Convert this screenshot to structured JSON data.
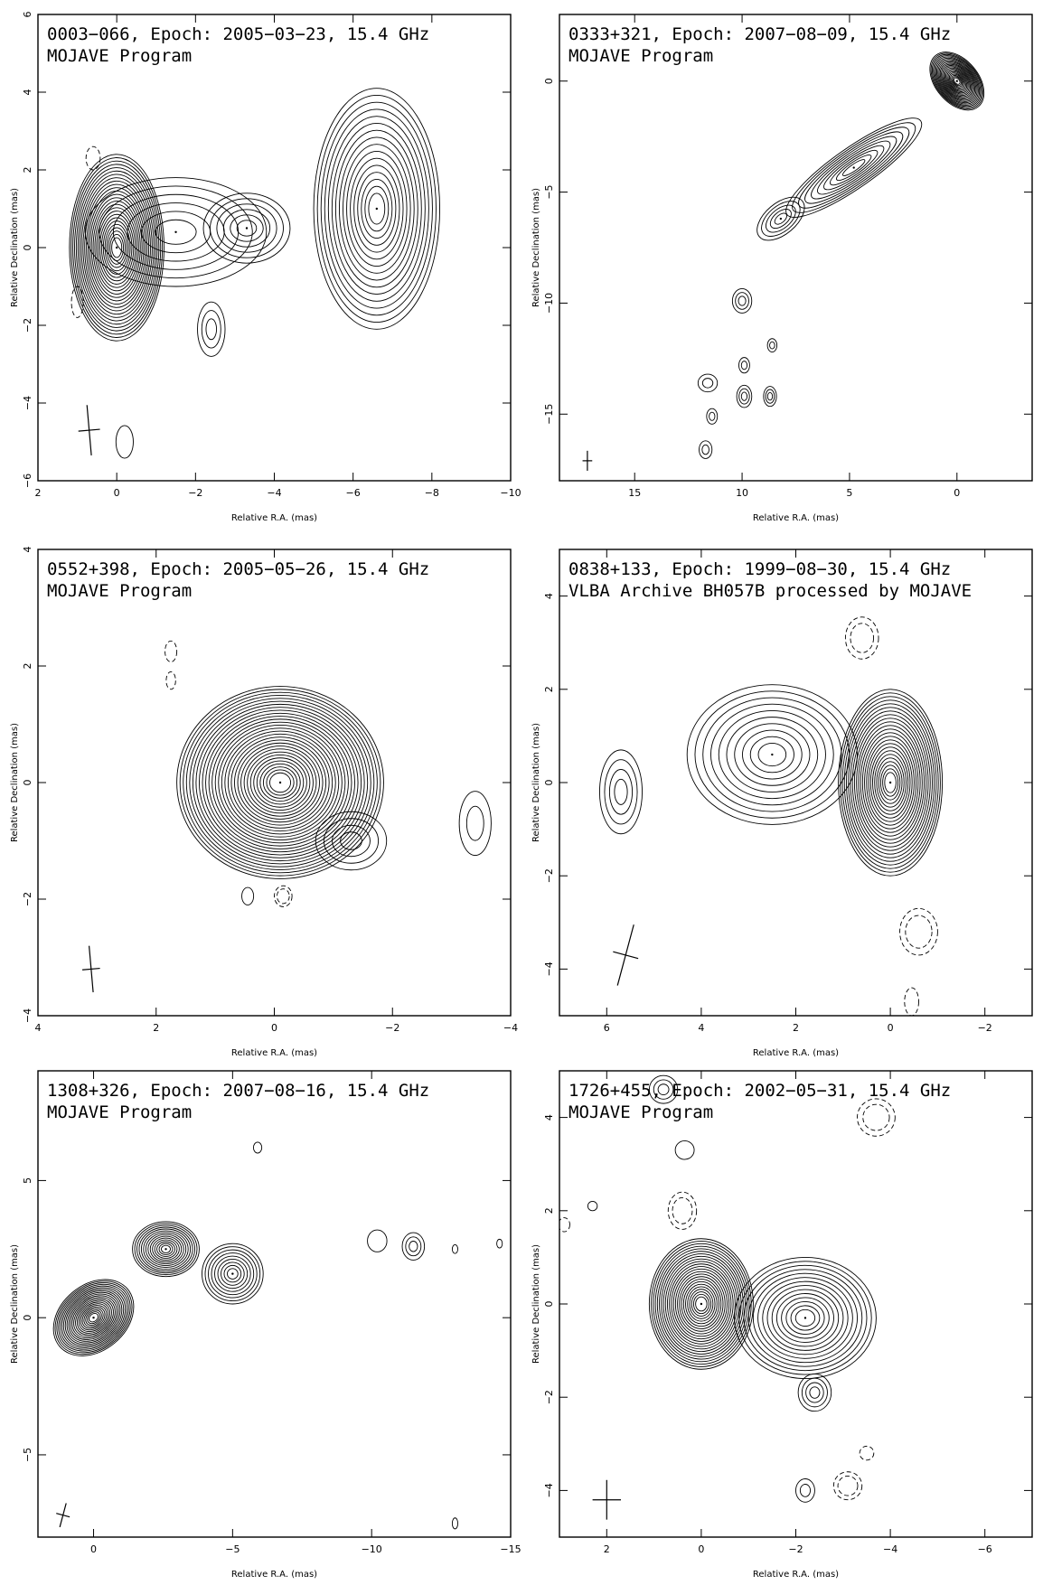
{
  "chart_data": [
    {
      "type": "contour",
      "title": "0003−066, Epoch: 2005−03−23, 15.4 GHz",
      "subtitle": "MOJAVE Program",
      "xlabel": "Relative R.A. (mas)",
      "ylabel": "Relative Declination (mas)",
      "xlim": [
        2,
        -10
      ],
      "ylim": [
        -6,
        6
      ],
      "xticks": [
        "2",
        "0",
        "−2",
        "−4",
        "−6",
        "−8",
        "−10"
      ],
      "xtick_values": [
        2,
        0,
        -2,
        -4,
        -6,
        -8,
        -10
      ],
      "yticks": [
        "−6",
        "−4",
        "−2",
        "0",
        "2",
        "4",
        "6"
      ],
      "ytick_values": [
        -6,
        -4,
        -2,
        0,
        2,
        4,
        6
      ],
      "beam": {
        "x": 0.7,
        "y": -4.7,
        "major": 1.3,
        "minor": 0.55,
        "pa": -5
      },
      "components": [
        {
          "x": 0.0,
          "y": 0.0,
          "rx": 1.2,
          "ry": 2.4,
          "levels": 26,
          "rot": 0
        },
        {
          "x": -1.5,
          "y": 0.4,
          "rx": 2.3,
          "ry": 1.4,
          "levels": 6,
          "rot": 0
        },
        {
          "x": -3.3,
          "y": 0.5,
          "rx": 1.1,
          "ry": 0.9,
          "levels": 6,
          "rot": 0
        },
        {
          "x": -6.6,
          "y": 1.0,
          "rx": 1.6,
          "ry": 3.1,
          "levels": 16,
          "rot": 0
        },
        {
          "x": -2.4,
          "y": -2.1,
          "rx": 0.35,
          "ry": 0.7,
          "levels": 3,
          "rot": 0
        },
        {
          "x": -0.2,
          "y": -5.0,
          "rx": 0.22,
          "ry": 0.42,
          "levels": 1,
          "rot": 0
        }
      ],
      "negative": [
        {
          "x": 0.6,
          "y": 2.3,
          "rx": 0.18,
          "ry": 0.3
        },
        {
          "x": 1.0,
          "y": -1.4,
          "rx": 0.15,
          "ry": 0.4
        }
      ]
    },
    {
      "type": "contour",
      "title": "0333+321, Epoch: 2007−08−09, 15.4 GHz",
      "subtitle": "MOJAVE Program",
      "xlabel": "Relative R.A. (mas)",
      "ylabel": "Relative Declination (mas)",
      "xlim": [
        18.5,
        -3.5
      ],
      "ylim": [
        -18,
        3
      ],
      "xticks": [
        "15",
        "10",
        "5",
        "0"
      ],
      "xtick_values": [
        15,
        10,
        5,
        0
      ],
      "yticks": [
        "−15",
        "−10",
        "−5",
        "0"
      ],
      "ytick_values": [
        -15,
        -10,
        -5,
        0
      ],
      "beam": {
        "x": 17.2,
        "y": -17.1,
        "major": 0.9,
        "minor": 0.45,
        "pa": 0
      },
      "components": [
        {
          "x": 0.0,
          "y": 0.0,
          "rx": 1.0,
          "ry": 1.5,
          "levels": 22,
          "rot": -40
        },
        {
          "x": 4.8,
          "y": -3.9,
          "rx": 3.8,
          "ry": 0.9,
          "levels": 10,
          "rot": -35
        },
        {
          "x": 8.2,
          "y": -6.2,
          "rx": 1.3,
          "ry": 0.7,
          "levels": 5,
          "rot": -40
        },
        {
          "x": 10.0,
          "y": -9.9,
          "rx": 0.45,
          "ry": 0.55,
          "levels": 3,
          "rot": 0
        },
        {
          "x": 11.6,
          "y": -13.6,
          "rx": 0.45,
          "ry": 0.4,
          "levels": 2,
          "rot": 0
        },
        {
          "x": 9.9,
          "y": -14.2,
          "rx": 0.35,
          "ry": 0.5,
          "levels": 3,
          "rot": 0
        },
        {
          "x": 8.7,
          "y": -14.2,
          "rx": 0.3,
          "ry": 0.45,
          "levels": 3,
          "rot": 0
        },
        {
          "x": 11.7,
          "y": -16.6,
          "rx": 0.3,
          "ry": 0.4,
          "levels": 2,
          "rot": 0
        },
        {
          "x": 9.9,
          "y": -12.8,
          "rx": 0.25,
          "ry": 0.35,
          "levels": 2,
          "rot": 0
        },
        {
          "x": 11.4,
          "y": -15.1,
          "rx": 0.25,
          "ry": 0.35,
          "levels": 2,
          "rot": 0
        },
        {
          "x": 8.6,
          "y": -11.9,
          "rx": 0.22,
          "ry": 0.3,
          "levels": 2,
          "rot": 0
        }
      ],
      "negative": []
    },
    {
      "type": "contour",
      "title": "0552+398, Epoch: 2005−05−26, 15.4 GHz",
      "subtitle": "MOJAVE Program",
      "xlabel": "Relative R.A. (mas)",
      "ylabel": "Relative Declination (mas)",
      "xlim": [
        4,
        -4
      ],
      "ylim": [
        -4,
        4
      ],
      "xticks": [
        "4",
        "2",
        "0",
        "−2",
        "−4"
      ],
      "xtick_values": [
        4,
        2,
        0,
        -2,
        -4
      ],
      "yticks": [
        "−4",
        "−2",
        "0",
        "2",
        "4"
      ],
      "ytick_values": [
        -4,
        -2,
        0,
        2,
        4
      ],
      "beam": {
        "x": 3.1,
        "y": -3.2,
        "major": 0.8,
        "minor": 0.3,
        "pa": -5
      },
      "components": [
        {
          "x": -0.1,
          "y": 0.0,
          "rx": 1.75,
          "ry": 1.65,
          "levels": 30,
          "rot": 0
        },
        {
          "x": -1.3,
          "y": -1.0,
          "rx": 0.6,
          "ry": 0.5,
          "levels": 4,
          "rot": 0
        },
        {
          "x": -3.4,
          "y": -0.7,
          "rx": 0.27,
          "ry": 0.55,
          "levels": 2,
          "rot": 0
        },
        {
          "x": 0.45,
          "y": -1.95,
          "rx": 0.1,
          "ry": 0.15,
          "levels": 1,
          "rot": 0
        }
      ],
      "negative": [
        {
          "x": 1.75,
          "y": 2.25,
          "rx": 0.1,
          "ry": 0.18
        },
        {
          "x": 1.75,
          "y": 1.75,
          "rx": 0.08,
          "ry": 0.15
        },
        {
          "x": -0.15,
          "y": -1.95,
          "rx": 0.15,
          "ry": 0.18
        }
      ]
    },
    {
      "type": "contour",
      "title": "0838+133, Epoch: 1999−08−30, 15.4 GHz",
      "subtitle": "VLBA Archive BH057B processed by MOJAVE",
      "xlabel": "Relative R.A. (mas)",
      "ylabel": "Relative Declination (mas)",
      "xlim": [
        7,
        -3
      ],
      "ylim": [
        -5,
        5
      ],
      "xticks": [
        "6",
        "4",
        "2",
        "0",
        "−2"
      ],
      "xtick_values": [
        6,
        4,
        2,
        0,
        -2
      ],
      "yticks": [
        "−4",
        "−2",
        "0",
        "2",
        "4"
      ],
      "ytick_values": [
        -4,
        -2,
        0,
        2,
        4
      ],
      "beam": {
        "x": 5.6,
        "y": -3.7,
        "major": 1.35,
        "minor": 0.55,
        "pa": 15
      },
      "components": [
        {
          "x": 0.0,
          "y": 0.0,
          "rx": 1.1,
          "ry": 2.0,
          "levels": 24,
          "rot": 0
        },
        {
          "x": 2.5,
          "y": 0.6,
          "rx": 1.8,
          "ry": 1.5,
          "levels": 10,
          "rot": 0
        },
        {
          "x": 5.7,
          "y": -0.2,
          "rx": 0.45,
          "ry": 0.9,
          "levels": 4,
          "rot": 0
        }
      ],
      "negative": [
        {
          "x": -0.6,
          "y": -3.2,
          "rx": 0.4,
          "ry": 0.5
        },
        {
          "x": 0.6,
          "y": 3.1,
          "rx": 0.35,
          "ry": 0.45
        },
        {
          "x": -0.45,
          "y": -4.7,
          "rx": 0.15,
          "ry": 0.3
        }
      ]
    },
    {
      "type": "contour",
      "title": "1308+326, Epoch: 2007−08−16, 15.4 GHz",
      "subtitle": "MOJAVE Program",
      "xlabel": "Relative R.A. (mas)",
      "ylabel": "Relative Declination (mas)",
      "xlim": [
        2,
        -15
      ],
      "ylim": [
        -8,
        9
      ],
      "xticks": [
        "0",
        "−5",
        "−10",
        "−15"
      ],
      "xtick_values": [
        0,
        -5,
        -10,
        -15
      ],
      "yticks": [
        "−5",
        "0",
        "5"
      ],
      "ytick_values": [
        -5,
        0,
        5
      ],
      "beam": {
        "x": 1.1,
        "y": -7.2,
        "major": 0.9,
        "minor": 0.5,
        "pa": 15
      },
      "components": [
        {
          "x": 0.0,
          "y": 0.0,
          "rx": 1.6,
          "ry": 1.2,
          "levels": 22,
          "rot": -40
        },
        {
          "x": -2.6,
          "y": 2.5,
          "rx": 1.2,
          "ry": 1.0,
          "levels": 14,
          "rot": 0
        },
        {
          "x": -5.0,
          "y": 1.6,
          "rx": 1.1,
          "ry": 1.1,
          "levels": 9,
          "rot": 0
        },
        {
          "x": -11.5,
          "y": 2.6,
          "rx": 0.4,
          "ry": 0.5,
          "levels": 3,
          "rot": 0
        },
        {
          "x": -10.2,
          "y": 2.8,
          "rx": 0.35,
          "ry": 0.4,
          "levels": 1,
          "rot": 0
        },
        {
          "x": -13.0,
          "y": 2.5,
          "rx": 0.1,
          "ry": 0.16,
          "levels": 1,
          "rot": 0
        },
        {
          "x": -14.6,
          "y": 2.7,
          "rx": 0.1,
          "ry": 0.16,
          "levels": 1,
          "rot": 0
        },
        {
          "x": -13.0,
          "y": -7.5,
          "rx": 0.1,
          "ry": 0.2,
          "levels": 1,
          "rot": 0
        },
        {
          "x": -5.9,
          "y": 6.2,
          "rx": 0.15,
          "ry": 0.2,
          "levels": 1,
          "rot": 0
        }
      ],
      "negative": []
    },
    {
      "type": "contour",
      "title": "1726+455, Epoch: 2002−05−31, 15.4 GHz",
      "subtitle": "MOJAVE Program",
      "xlabel": "Relative R.A. (mas)",
      "ylabel": "Relative Declination (mas)",
      "xlim": [
        3,
        -7
      ],
      "ylim": [
        -5,
        5
      ],
      "xticks": [
        "2",
        "0",
        "−2",
        "−4",
        "−6"
      ],
      "xtick_values": [
        2,
        0,
        -2,
        -4,
        -6
      ],
      "yticks": [
        "−4",
        "−2",
        "0",
        "2",
        "4"
      ],
      "ytick_values": [
        -4,
        -2,
        0,
        2,
        4
      ],
      "beam": {
        "x": 2.0,
        "y": -4.2,
        "major": 0.85,
        "minor": 0.6,
        "pa": 0
      },
      "components": [
        {
          "x": 0.0,
          "y": 0.0,
          "rx": 1.1,
          "ry": 1.4,
          "levels": 24,
          "rot": 0
        },
        {
          "x": -2.2,
          "y": -0.3,
          "rx": 1.5,
          "ry": 1.3,
          "levels": 14,
          "rot": 0
        },
        {
          "x": -2.4,
          "y": -1.9,
          "rx": 0.35,
          "ry": 0.4,
          "levels": 4,
          "rot": 0
        },
        {
          "x": 0.8,
          "y": 4.6,
          "rx": 0.3,
          "ry": 0.3,
          "levels": 3,
          "rot": 0
        },
        {
          "x": 0.35,
          "y": 3.3,
          "rx": 0.2,
          "ry": 0.2,
          "levels": 1,
          "rot": 0
        },
        {
          "x": -2.2,
          "y": -4.0,
          "rx": 0.2,
          "ry": 0.25,
          "levels": 2,
          "rot": 0
        },
        {
          "x": 2.3,
          "y": 2.1,
          "rx": 0.1,
          "ry": 0.1,
          "levels": 1,
          "rot": 0
        }
      ],
      "negative": [
        {
          "x": -3.7,
          "y": 4.0,
          "rx": 0.4,
          "ry": 0.4
        },
        {
          "x": 0.4,
          "y": 2.0,
          "rx": 0.3,
          "ry": 0.4
        },
        {
          "x": -3.1,
          "y": -3.9,
          "rx": 0.3,
          "ry": 0.3
        },
        {
          "x": -3.5,
          "y": -3.2,
          "rx": 0.15,
          "ry": 0.15
        },
        {
          "x": 2.9,
          "y": 1.7,
          "rx": 0.12,
          "ry": 0.15
        }
      ]
    }
  ]
}
